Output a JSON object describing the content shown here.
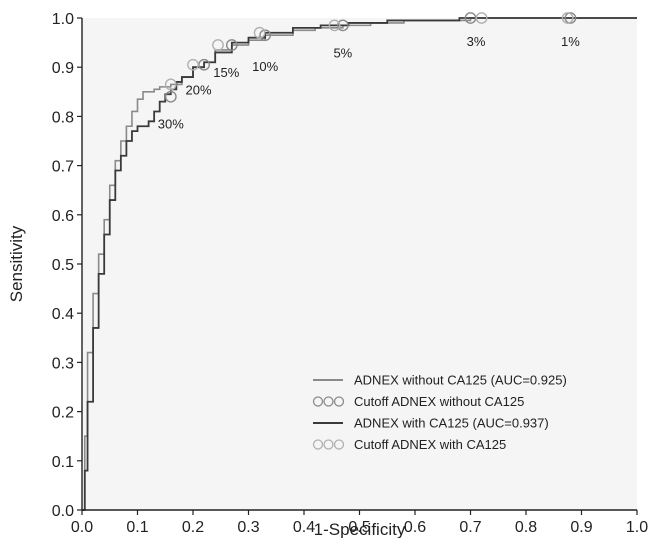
{
  "chart_data": {
    "type": "line",
    "title": "",
    "xlabel": "1-Specificity",
    "ylabel": "Sensitivity",
    "xlim": [
      0.0,
      1.0
    ],
    "ylim": [
      0.0,
      1.0
    ],
    "xticks": [
      "0.0",
      "0.1",
      "0.2",
      "0.3",
      "0.4",
      "0.5",
      "0.6",
      "0.7",
      "0.8",
      "0.9",
      "1.0"
    ],
    "yticks": [
      "0.0",
      "0.1",
      "0.2",
      "0.3",
      "0.4",
      "0.5",
      "0.6",
      "0.7",
      "0.8",
      "0.9",
      "1.0"
    ],
    "grid": false,
    "legend_position": "bottom-right",
    "colors": {
      "plot_background": "#f5f5f5",
      "without_line": "#8a8a8a",
      "with_line": "#3a3a3a",
      "without_marker": "#8a8a8a",
      "with_marker": "#b0b0b0"
    },
    "series": [
      {
        "name": "ADNEX without CA125 (AUC=0.925)",
        "kind": "line",
        "x": [
          0.0,
          0.005,
          0.01,
          0.02,
          0.03,
          0.04,
          0.05,
          0.06,
          0.07,
          0.08,
          0.09,
          0.1,
          0.11,
          0.12,
          0.13,
          0.14,
          0.15,
          0.16,
          0.18,
          0.2,
          0.22,
          0.24,
          0.27,
          0.3,
          0.33,
          0.38,
          0.42,
          0.47,
          0.52,
          0.58,
          0.65,
          0.7,
          0.75,
          0.8,
          0.88,
          0.95,
          1.0
        ],
        "y": [
          0.0,
          0.15,
          0.32,
          0.44,
          0.52,
          0.59,
          0.66,
          0.71,
          0.75,
          0.78,
          0.81,
          0.835,
          0.85,
          0.85,
          0.855,
          0.86,
          0.86,
          0.865,
          0.88,
          0.9,
          0.91,
          0.935,
          0.945,
          0.955,
          0.965,
          0.975,
          0.98,
          0.985,
          0.99,
          0.995,
          0.995,
          1.0,
          1.0,
          1.0,
          1.0,
          1.0,
          1.0
        ]
      },
      {
        "name": "Cutoff ADNEX without CA125",
        "kind": "markers",
        "x": [
          0.88,
          0.7,
          0.47,
          0.33,
          0.27,
          0.22,
          0.16
        ],
        "y": [
          1.0,
          1.0,
          0.985,
          0.965,
          0.945,
          0.905,
          0.84
        ]
      },
      {
        "name": "ADNEX with CA125 (AUC=0.937)",
        "kind": "line",
        "x": [
          0.0,
          0.005,
          0.01,
          0.02,
          0.03,
          0.04,
          0.05,
          0.06,
          0.07,
          0.08,
          0.09,
          0.1,
          0.11,
          0.12,
          0.13,
          0.14,
          0.15,
          0.16,
          0.17,
          0.18,
          0.2,
          0.22,
          0.24,
          0.27,
          0.3,
          0.33,
          0.38,
          0.43,
          0.48,
          0.55,
          0.62,
          0.68,
          0.72,
          0.8,
          0.88,
          0.95,
          1.0
        ],
        "y": [
          0.0,
          0.08,
          0.22,
          0.37,
          0.48,
          0.56,
          0.63,
          0.69,
          0.72,
          0.75,
          0.77,
          0.78,
          0.78,
          0.79,
          0.81,
          0.83,
          0.845,
          0.855,
          0.87,
          0.88,
          0.9,
          0.91,
          0.93,
          0.95,
          0.96,
          0.97,
          0.98,
          0.985,
          0.99,
          0.995,
          0.995,
          1.0,
          1.0,
          1.0,
          1.0,
          1.0,
          1.0
        ]
      },
      {
        "name": "Cutoff ADNEX with CA125",
        "kind": "markers",
        "x": [
          0.875,
          0.72,
          0.455,
          0.32,
          0.245,
          0.2,
          0.16
        ],
        "y": [
          1.0,
          1.0,
          0.985,
          0.97,
          0.945,
          0.905,
          0.865
        ]
      }
    ],
    "annotations": [
      {
        "text": "1%",
        "x": 0.88,
        "y": 1.0
      },
      {
        "text": "3%",
        "x": 0.71,
        "y": 1.0
      },
      {
        "text": "5%",
        "x": 0.47,
        "y": 0.985
      },
      {
        "text": "10%",
        "x": 0.33,
        "y": 0.965
      },
      {
        "text": "15%",
        "x": 0.26,
        "y": 0.945
      },
      {
        "text": "20%",
        "x": 0.21,
        "y": 0.905
      },
      {
        "text": "30%",
        "x": 0.16,
        "y": 0.84
      }
    ]
  }
}
